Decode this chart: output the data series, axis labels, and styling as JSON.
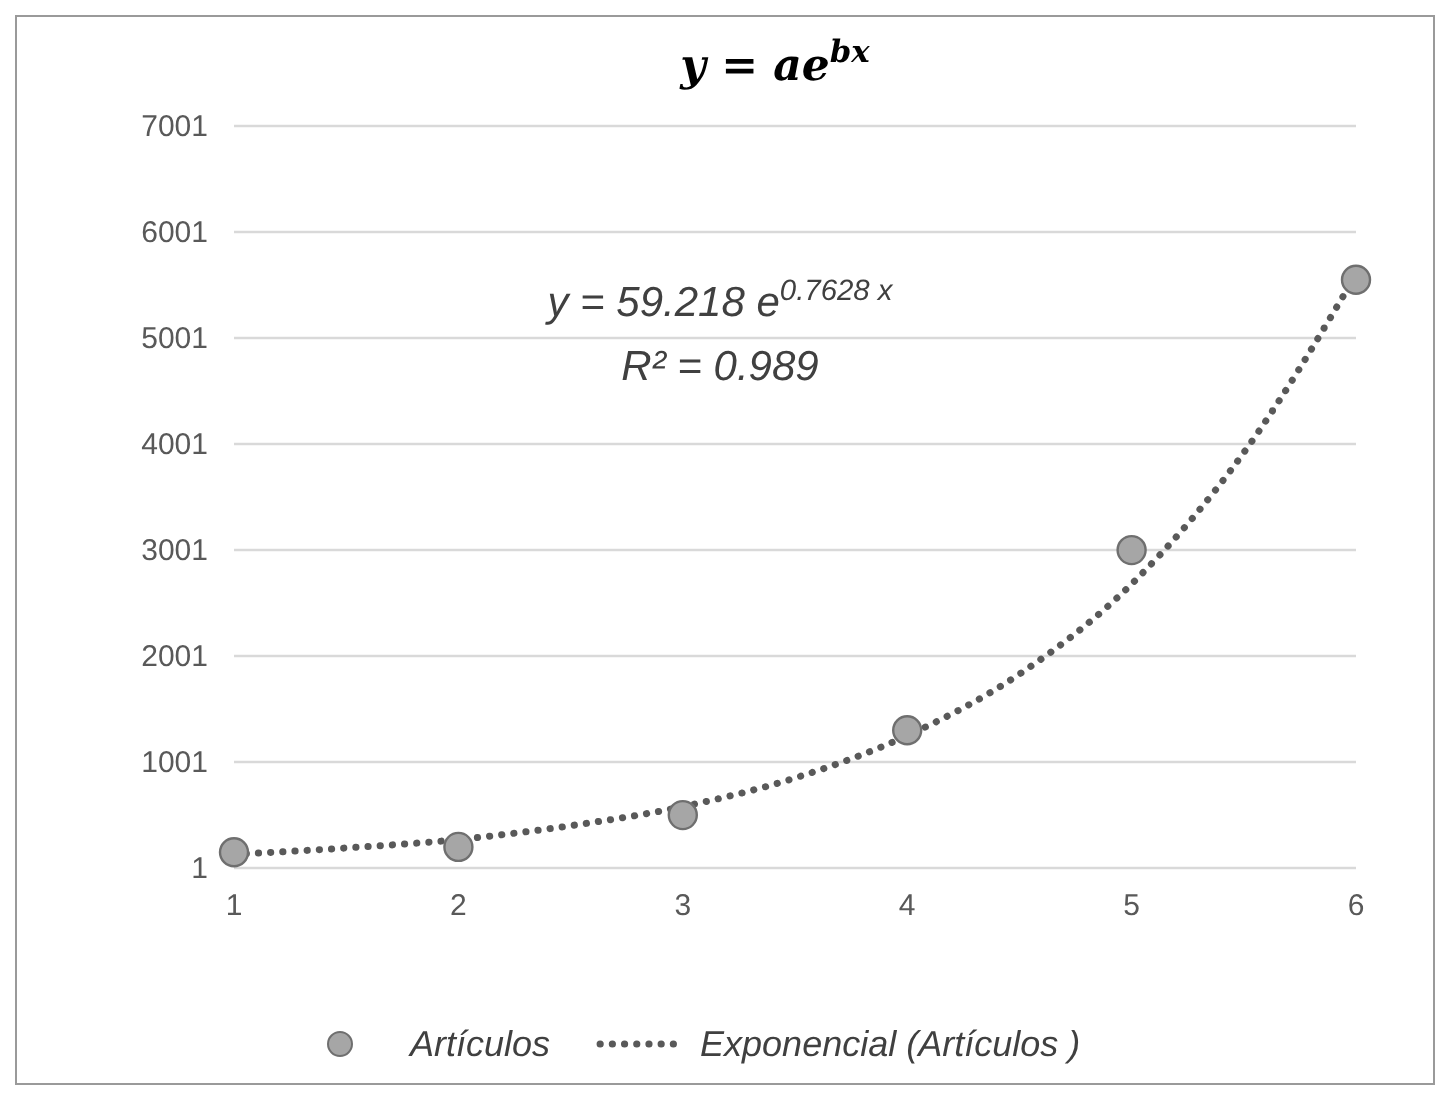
{
  "chart_data": {
    "type": "scatter",
    "title": "y = ae$^{bx}$",
    "xlim": [
      1,
      6
    ],
    "xticks": [
      1,
      2,
      3,
      4,
      5,
      6
    ],
    "ylim": [
      1,
      7001
    ],
    "yticks": [
      1,
      1001,
      2001,
      3001,
      4001,
      5001,
      6001,
      7001
    ],
    "grid": "y",
    "legend": "bottom",
    "annotations": [
      "y = 59.218 e$^{0.7628 x}$",
      "R² = 0.989"
    ],
    "series": [
      {
        "name": "Artículos",
        "marker": "circle",
        "color": "#a6a6a6",
        "x": [
          1,
          2,
          3,
          4,
          5,
          6
        ],
        "values": [
          150,
          200,
          500,
          1300,
          3000,
          5550
        ]
      },
      {
        "name": "Exponencial (Artículos )",
        "type": "line",
        "line_style": "dotted",
        "marker": "none",
        "color": "#595959",
        "x": [
          1,
          1.5,
          2,
          2.5,
          3,
          3.5,
          4,
          4.5,
          5,
          5.5,
          6
        ],
        "values": [
          130,
          190,
          270,
          400,
          580,
          850,
          1250,
          1830,
          2680,
          3920,
          5600
        ]
      }
    ]
  }
}
